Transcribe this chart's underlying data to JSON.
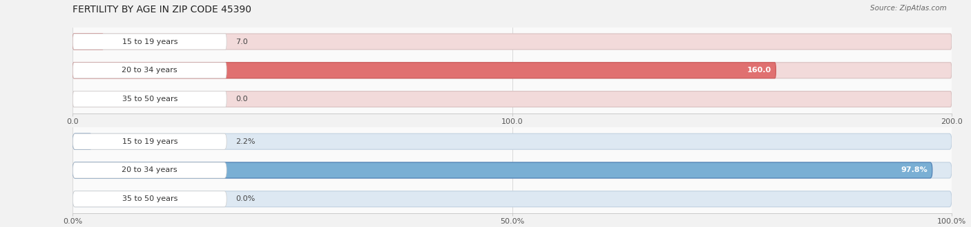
{
  "title": "FERTILITY BY AGE IN ZIP CODE 45390",
  "source": "Source: ZipAtlas.com",
  "top_chart": {
    "categories": [
      "15 to 19 years",
      "20 to 34 years",
      "35 to 50 years"
    ],
    "values": [
      7.0,
      160.0,
      0.0
    ],
    "xlim": [
      0,
      200
    ],
    "xticks": [
      0.0,
      100.0,
      200.0
    ],
    "xtick_labels": [
      "0.0",
      "100.0",
      "200.0"
    ],
    "bar_color": "#E07070",
    "bar_dark_color": "#C85555",
    "bar_bg_color": "#F2DADA",
    "bar_bg_border": "#D8C0C0",
    "label_white_bg": "#FFFFFF"
  },
  "bottom_chart": {
    "categories": [
      "15 to 19 years",
      "20 to 34 years",
      "35 to 50 years"
    ],
    "values": [
      2.2,
      97.8,
      0.0
    ],
    "xlim": [
      0,
      100
    ],
    "xticks": [
      0.0,
      50.0,
      100.0
    ],
    "xtick_labels": [
      "0.0%",
      "50.0%",
      "100.0%"
    ],
    "bar_color": "#7AAFD4",
    "bar_dark_color": "#4A7BB0",
    "bar_bg_color": "#DDE8F2",
    "bar_bg_border": "#C0D0E0",
    "label_white_bg": "#FFFFFF"
  },
  "page_bg_color": "#F2F2F2",
  "chart_bg_color": "#FAFAFA",
  "bar_height": 0.55,
  "title_fontsize": 10,
  "source_fontsize": 7.5,
  "value_fontsize": 8,
  "category_fontsize": 8,
  "tick_fontsize": 8
}
